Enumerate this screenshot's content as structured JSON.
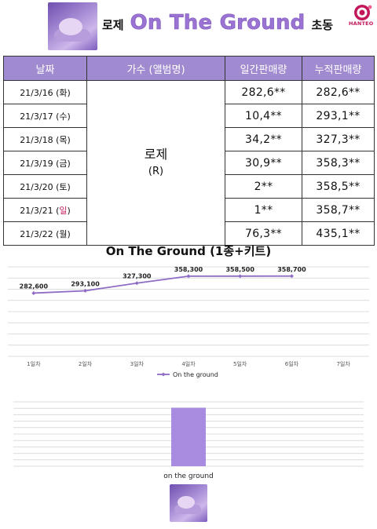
{
  "header": {
    "prefix": "로제",
    "title": "On The Ground",
    "suffix": "초동",
    "logo_text": "HANTEO"
  },
  "table": {
    "headers": [
      "날짜",
      "가수 (앨범명)",
      "일간판매량",
      "누적판매량"
    ],
    "artist_name": "로제",
    "artist_sub": "(R)",
    "rows": [
      {
        "date": "21/3/16 (화)",
        "day_prefix": "21/3/16 (",
        "day": "화",
        "day_suffix": ")",
        "daily": "282,6**",
        "total": "282,6**",
        "sunday": false
      },
      {
        "date": "21/3/17 (수)",
        "day_prefix": "21/3/17 (",
        "day": "수",
        "day_suffix": ")",
        "daily": "10,4**",
        "total": "293,1**",
        "sunday": false
      },
      {
        "date": "21/3/18 (목)",
        "day_prefix": "21/3/18 (",
        "day": "목",
        "day_suffix": ")",
        "daily": "34,2**",
        "total": "327,3**",
        "sunday": false
      },
      {
        "date": "21/3/19 (금)",
        "day_prefix": "21/3/19 (",
        "day": "금",
        "day_suffix": ")",
        "daily": "30,9**",
        "total": "358,3**",
        "sunday": false
      },
      {
        "date": "21/3/20 (토)",
        "day_prefix": "21/3/20 (",
        "day": "토",
        "day_suffix": ")",
        "daily": "2**",
        "total": "358,5**",
        "sunday": false
      },
      {
        "date": "21/3/21 (일)",
        "day_prefix": "21/3/21 (",
        "day": "일",
        "day_suffix": ")",
        "daily": "1**",
        "total": "358,7**",
        "sunday": true
      },
      {
        "date": "21/3/22 (월)",
        "day_prefix": "21/3/22 (",
        "day": "월",
        "day_suffix": ")",
        "daily": "76,3**",
        "total": "435,1**",
        "sunday": false
      }
    ]
  },
  "colors": {
    "accent": "#9a73d3",
    "table_header": "#a08ad0",
    "line": "#8e6cc4",
    "bar": "#a98be0",
    "sunday": "#c2185b"
  },
  "chart_data": [
    {
      "type": "line",
      "title": "On The Ground (1종+키트)",
      "categories": [
        "1일차",
        "2일차",
        "3일차",
        "4일차",
        "5일차",
        "6일차",
        "7일차"
      ],
      "series": [
        {
          "name": "On the ground",
          "values": [
            282600,
            293100,
            327300,
            358300,
            358500,
            358700,
            null
          ]
        }
      ],
      "data_labels": [
        "282,600",
        "293,100",
        "327,300",
        "358,300",
        "358,500",
        "358,700"
      ],
      "ylim": [
        0,
        400000
      ],
      "grid": true,
      "legend": "bottom"
    },
    {
      "type": "bar",
      "categories": [
        "on the ground"
      ],
      "values": [
        1
      ],
      "ylim": [
        0,
        1.1
      ],
      "grid": true,
      "legend": "none"
    }
  ]
}
